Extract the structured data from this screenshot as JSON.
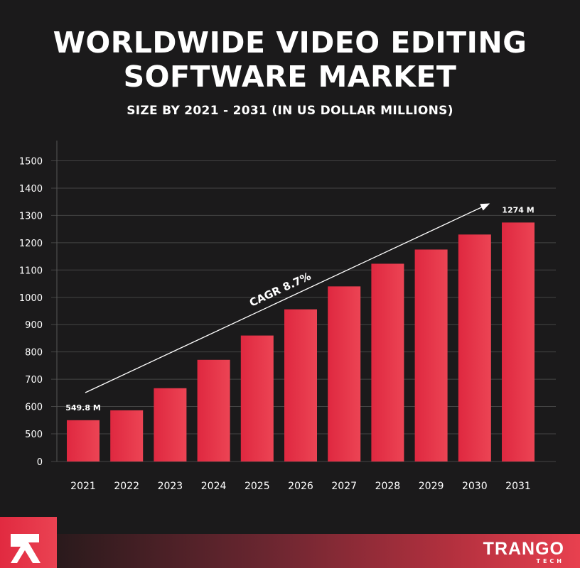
{
  "chart_data": {
    "type": "bar",
    "title": "WORLDWIDE VIDEO EDITING SOFTWARE MARKET",
    "subtitle": "SIZE BY 2021 - 2031 (IN US DOLLAR MILLIONS)",
    "categories": [
      "2021",
      "2022",
      "2023",
      "2024",
      "2025",
      "2026",
      "2027",
      "2028",
      "2029",
      "2030",
      "2031"
    ],
    "values": [
      549.8,
      586,
      667,
      771,
      860,
      956,
      1040,
      1123,
      1175,
      1230,
      1274
    ],
    "yticks": [
      "0",
      "500",
      "600",
      "700",
      "800",
      "900",
      "1000",
      "1100",
      "1200",
      "1300",
      "1400",
      "1500"
    ],
    "ylim": [
      0,
      1500
    ],
    "axis_break": "0-500",
    "grid": true,
    "data_labels": [
      {
        "category": "2021",
        "text": "549.8 M"
      },
      {
        "category": "2031",
        "text": "1274 M"
      }
    ],
    "annotation": "CAGR 8.7%",
    "bar_color": "#e5323f"
  },
  "brand": {
    "name": "TRANGO",
    "sub": "TECH",
    "logo_icon": "arrow-up-left-icon"
  }
}
